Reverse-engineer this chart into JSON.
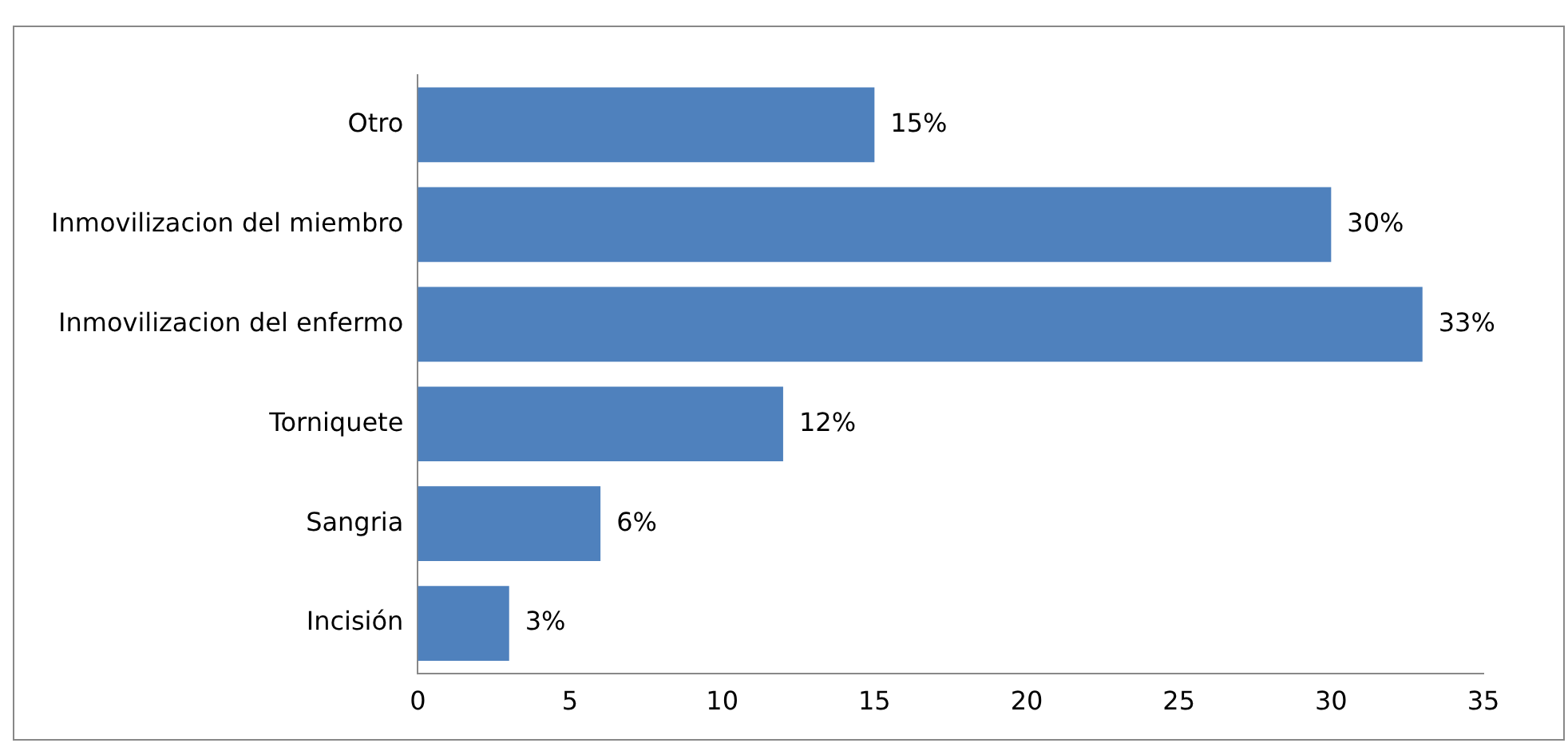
{
  "chart_data": {
    "type": "bar",
    "orientation": "horizontal",
    "categories": [
      "Otro",
      "Inmovilizacion del miembro",
      "Inmovilizacion del enfermo",
      "Torniquete",
      "Sangria",
      "Incisión"
    ],
    "values": [
      15,
      30,
      33,
      12,
      6,
      3
    ],
    "value_labels": [
      "15%",
      "30%",
      "33%",
      "12%",
      "6%",
      "3%"
    ],
    "color": "#4f81bd",
    "xlim": [
      0,
      35
    ],
    "xticks": [
      0,
      5,
      10,
      15,
      20,
      25,
      30,
      35
    ],
    "grid": false,
    "legend": false
  }
}
